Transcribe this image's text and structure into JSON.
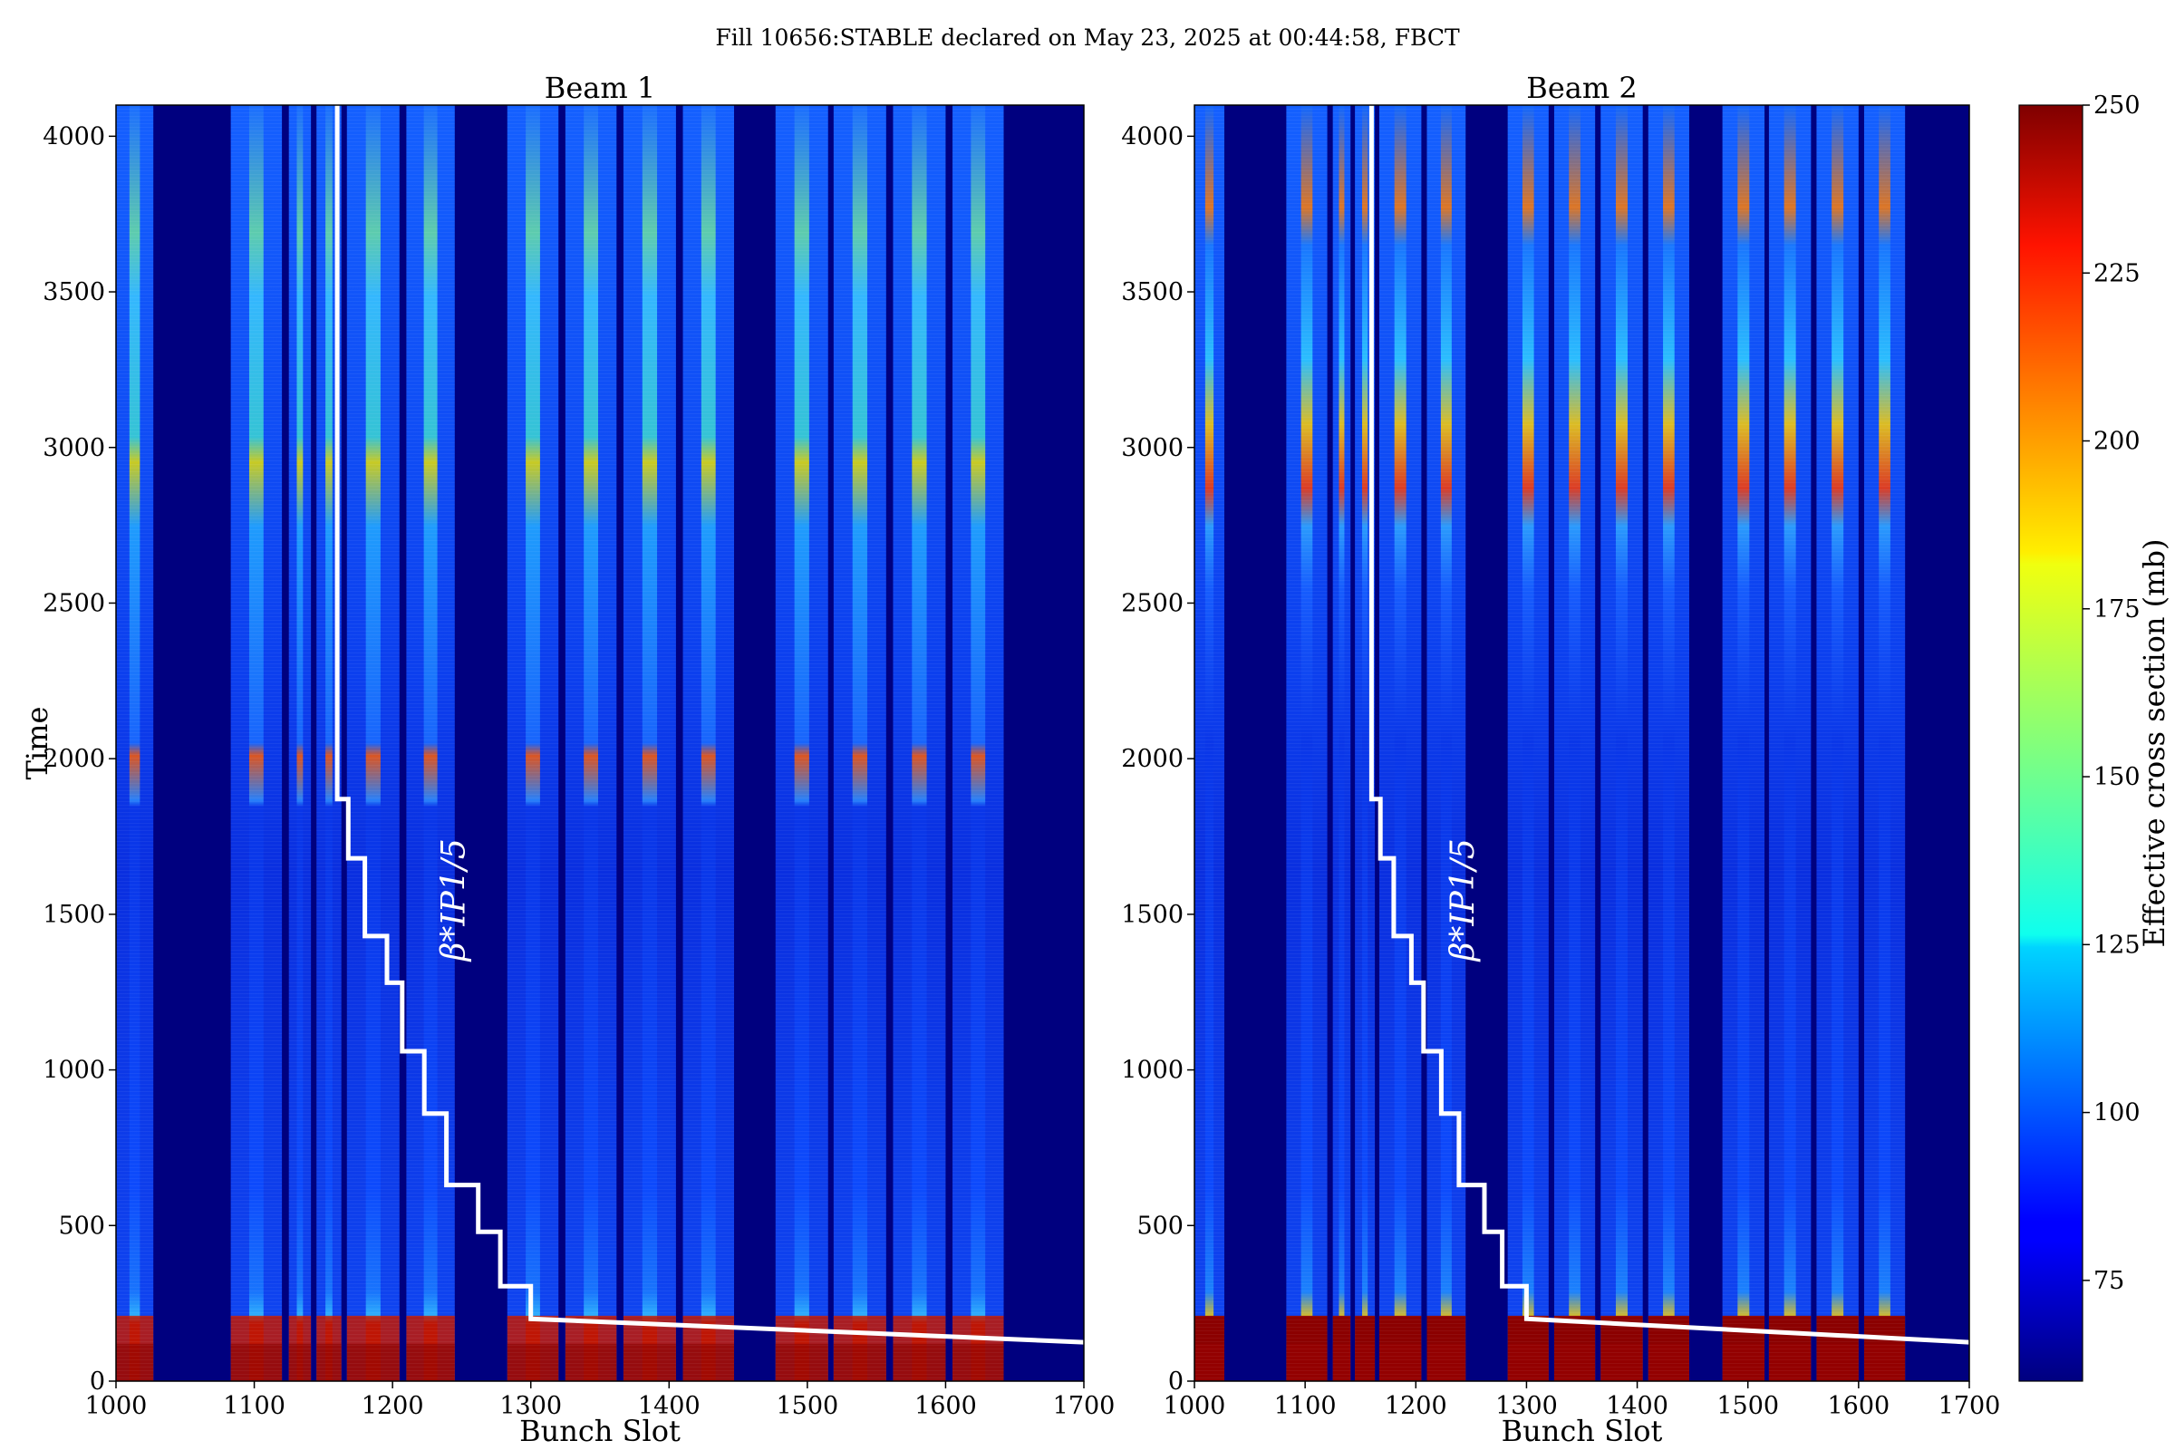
{
  "figure": {
    "title": "Fill 10656:STABLE declared on May 23, 2025 at 00:44:58, FBCT"
  },
  "colors": {
    "background_band": "#00007f",
    "staircase_line": "#ffffff",
    "colormap": "jet"
  },
  "chart_data": [
    {
      "type": "heatmap",
      "title": "Beam 1",
      "xlabel": "Bunch Slot",
      "ylabel": "Time",
      "xlim": [
        1000,
        1700
      ],
      "ylim": [
        0,
        4100
      ],
      "xticks": [
        1000,
        1100,
        1200,
        1300,
        1400,
        1500,
        1600,
        1700
      ],
      "yticks": [
        0,
        500,
        1000,
        1500,
        2000,
        2500,
        3000,
        3500,
        4000
      ],
      "filled_bunch_ranges": [
        [
          1000,
          1027
        ],
        [
          1083,
          1120
        ],
        [
          1125,
          1141
        ],
        [
          1145,
          1163
        ],
        [
          1167,
          1205
        ],
        [
          1210,
          1245
        ],
        [
          1283,
          1320
        ],
        [
          1325,
          1362
        ],
        [
          1367,
          1405
        ],
        [
          1410,
          1447
        ],
        [
          1477,
          1515
        ],
        [
          1519,
          1557
        ],
        [
          1562,
          1600
        ],
        [
          1605,
          1642
        ]
      ],
      "annotation": "β*IP1/5",
      "series": [
        {
          "type": "step",
          "x": [
            1160,
            1160,
            1168,
            1168,
            1180,
            1180,
            1196,
            1196,
            1207,
            1207,
            1223,
            1223,
            1239,
            1239,
            1262,
            1262,
            1278,
            1278,
            1300,
            1300,
            1700
          ],
          "y": [
            4100,
            1870,
            1870,
            1680,
            1680,
            1430,
            1430,
            1280,
            1280,
            1060,
            1060,
            860,
            860,
            630,
            630,
            480,
            480,
            305,
            305,
            200,
            125
          ]
        }
      ]
    },
    {
      "type": "heatmap",
      "title": "Beam 2",
      "xlabel": "Bunch Slot",
      "ylabel": "",
      "xlim": [
        1000,
        1700
      ],
      "ylim": [
        0,
        4100
      ],
      "xticks": [
        1000,
        1100,
        1200,
        1300,
        1400,
        1500,
        1600,
        1700
      ],
      "yticks": [
        0,
        500,
        1000,
        1500,
        2000,
        2500,
        3000,
        3500,
        4000
      ],
      "filled_bunch_ranges": [
        [
          1000,
          1027
        ],
        [
          1083,
          1120
        ],
        [
          1125,
          1141
        ],
        [
          1145,
          1163
        ],
        [
          1167,
          1205
        ],
        [
          1210,
          1245
        ],
        [
          1283,
          1320
        ],
        [
          1325,
          1362
        ],
        [
          1367,
          1405
        ],
        [
          1410,
          1447
        ],
        [
          1477,
          1515
        ],
        [
          1519,
          1557
        ],
        [
          1562,
          1600
        ],
        [
          1605,
          1642
        ]
      ],
      "annotation": "β*IP1/5",
      "series": [
        {
          "type": "step",
          "x": [
            1160,
            1160,
            1168,
            1168,
            1180,
            1180,
            1196,
            1196,
            1207,
            1207,
            1223,
            1223,
            1239,
            1239,
            1262,
            1262,
            1278,
            1278,
            1300,
            1300,
            1700
          ],
          "y": [
            4100,
            1870,
            1870,
            1680,
            1680,
            1430,
            1430,
            1280,
            1280,
            1060,
            1060,
            860,
            860,
            630,
            630,
            480,
            480,
            305,
            305,
            200,
            125
          ]
        }
      ]
    }
  ],
  "colorbar": {
    "label": "Effective cross section (mb)",
    "range": [
      60,
      250
    ],
    "ticks": [
      75,
      100,
      125,
      150,
      175,
      200,
      225,
      250
    ]
  }
}
